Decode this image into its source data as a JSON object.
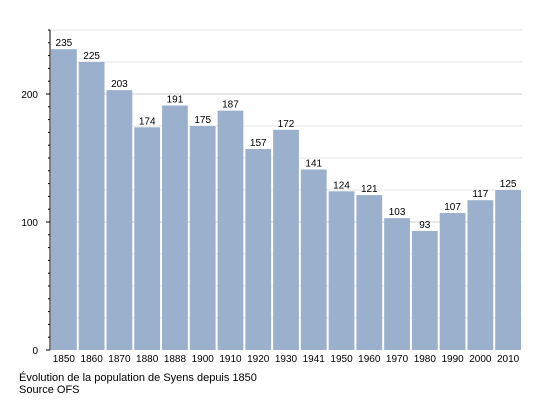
{
  "chart_data": {
    "type": "bar",
    "categories": [
      "1850",
      "1860",
      "1870",
      "1880",
      "1888",
      "1900",
      "1910",
      "1920",
      "1930",
      "1941",
      "1950",
      "1960",
      "1970",
      "1980",
      "1990",
      "2000",
      "2010"
    ],
    "values": [
      235,
      225,
      203,
      174,
      191,
      175,
      187,
      157,
      172,
      141,
      124,
      121,
      103,
      93,
      107,
      117,
      125
    ],
    "title": "Évolution de la population de Syens depuis 1850",
    "source": "Source OFS",
    "xlabel": "",
    "ylabel": "",
    "ylim": [
      0,
      250
    ],
    "yticks": [
      0,
      100,
      200
    ],
    "grid": true,
    "bar_color": "#9ab0cd",
    "grid_color": "#cccccc",
    "axis_color": "#000000"
  }
}
